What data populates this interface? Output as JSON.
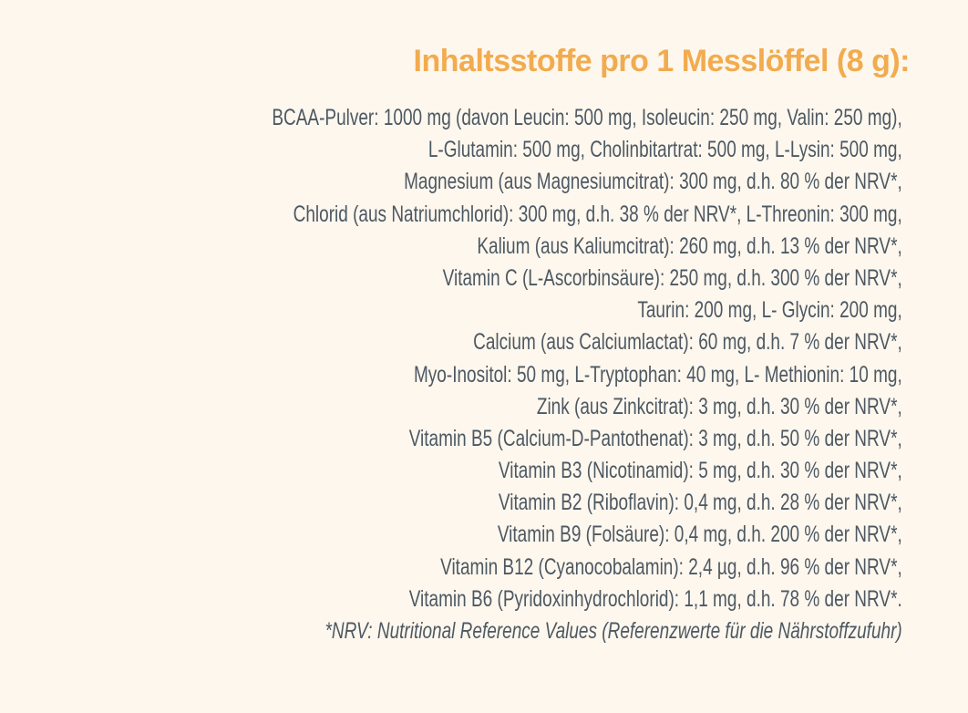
{
  "header": {
    "title": "Inhaltsstoffe pro 1 Messlöffel (8 g):"
  },
  "lines": [
    "BCAA-Pulver: 1000 mg (davon Leucin: 500 mg, Isoleucin: 250 mg, Valin: 250 mg),",
    "L-Glutamin: 500 mg, Cholinbitartrat: 500 mg, L-Lysin: 500 mg,",
    "Magnesium (aus Magnesiumcitrat): 300 mg, d.h. 80 % der NRV*,",
    "Chlorid (aus Natriumchlorid): 300 mg, d.h. 38 % der NRV*, L-Threonin: 300 mg,",
    "Kalium (aus Kaliumcitrat): 260 mg, d.h. 13 % der NRV*,",
    "Vitamin C (L-Ascorbinsäure): 250 mg, d.h. 300 % der NRV*,",
    "Taurin: 200 mg, L- Glycin: 200 mg,",
    "Calcium (aus Calciumlactat): 60 mg, d.h. 7 % der NRV*,",
    "Myo-Inositol: 50 mg, L-Tryptophan: 40 mg, L- Methionin: 10 mg,",
    "Zink (aus Zinkcitrat): 3 mg, d.h. 30 % der NRV*,",
    "Vitamin B5 (Calcium-D-Pantothenat): 3 mg, d.h. 50 % der NRV*,",
    "Vitamin B3 (Nicotinamid): 5 mg, d.h. 30 % der NRV*,",
    "Vitamin B2 (Riboflavin): 0,4 mg, d.h. 28 % der NRV*,",
    "Vitamin B9 (Folsäure): 0,4 mg, d.h. 200 % der NRV*,",
    "Vitamin B12 (Cyanocobalamin): 2,4 µg, d.h. 96 % der NRV*,",
    "Vitamin B6 (Pyridoxinhydrochlorid): 1,1 mg, d.h. 78 % der NRV*."
  ],
  "footnote": "*NRV: Nutritional Reference Values (Referenzwerte für die Nährstoffzufuhr)"
}
